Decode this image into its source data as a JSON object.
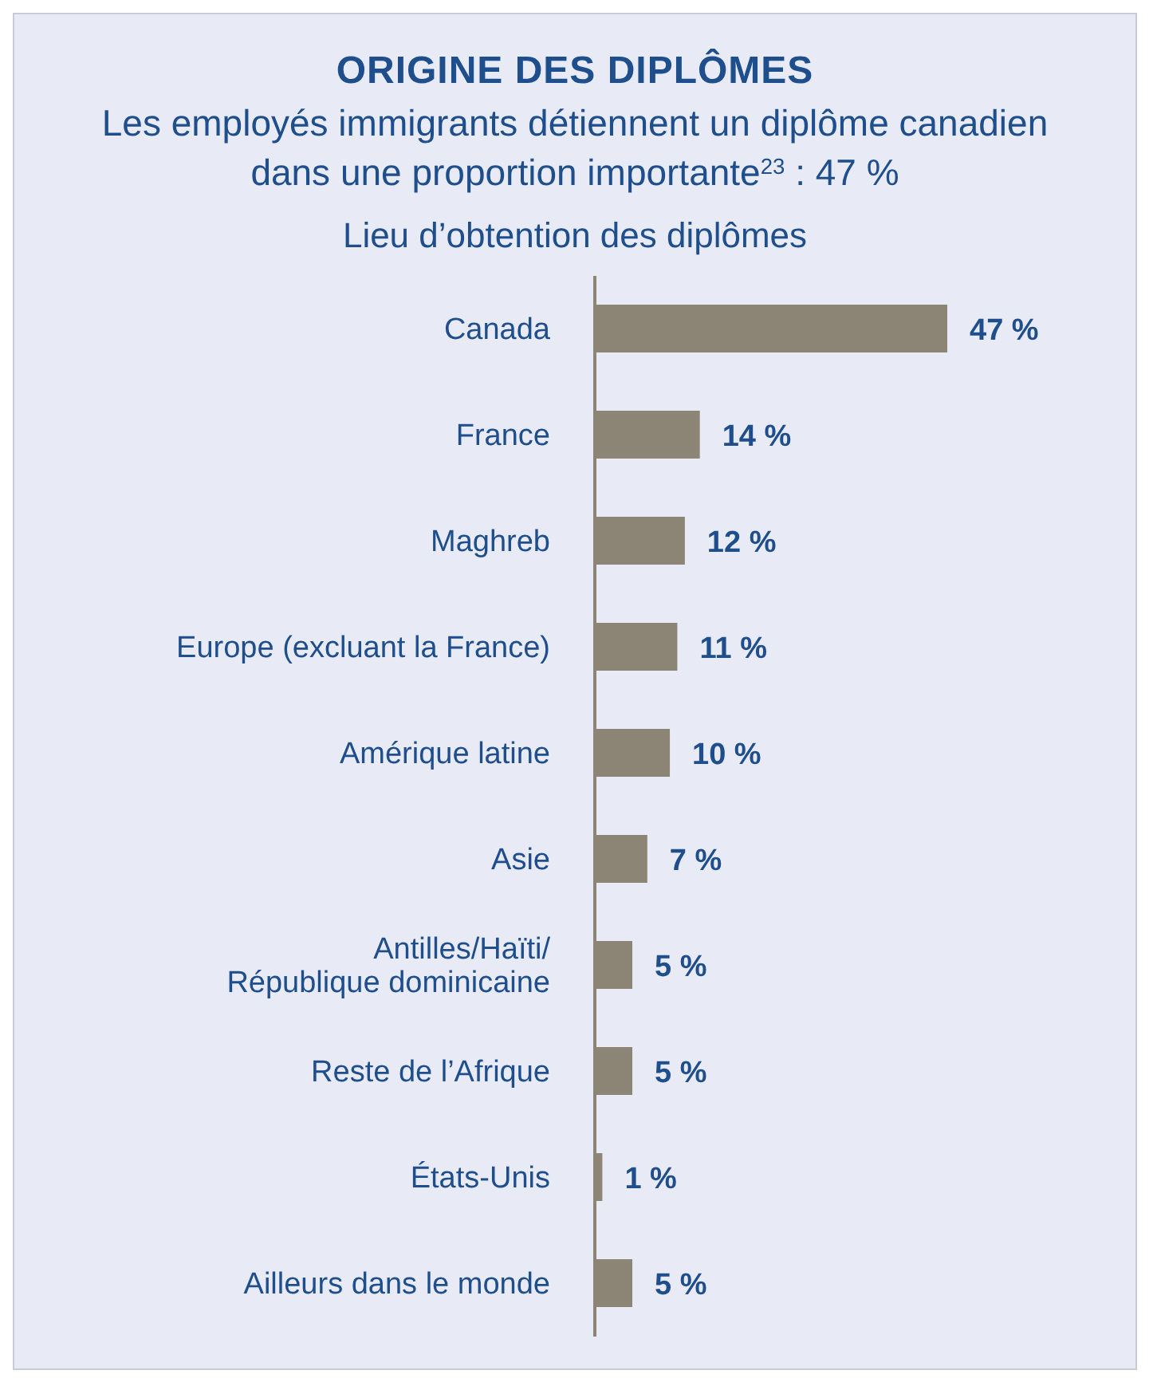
{
  "chart_data": {
    "type": "bar",
    "orientation": "horizontal",
    "title": "ORIGINE DES DIPLÔMES",
    "subtitle": "Les employés immigrants détiennent un diplôme canadien dans une proportion importante$^{23}$ : 47 %",
    "annotations": [
      "Lieu d’obtention des diplômes"
    ],
    "categories": [
      "Canada",
      "France",
      "Maghreb",
      "Europe (excluant la France)",
      "Amérique latine",
      "Asie",
      "Antilles/Haïti/ République dominicaine",
      "Reste de l’Afrique",
      "États-Unis",
      "Ailleurs dans le monde"
    ],
    "values": [
      47,
      14,
      12,
      11,
      10,
      7,
      5,
      5,
      1,
      5
    ],
    "value_labels": [
      "47 %",
      "14 %",
      "12 %",
      "11 %",
      "10 %",
      "7 %",
      "5 %",
      "5 %",
      "1 %",
      "5 %"
    ],
    "color": "#8c8474"
  }
}
